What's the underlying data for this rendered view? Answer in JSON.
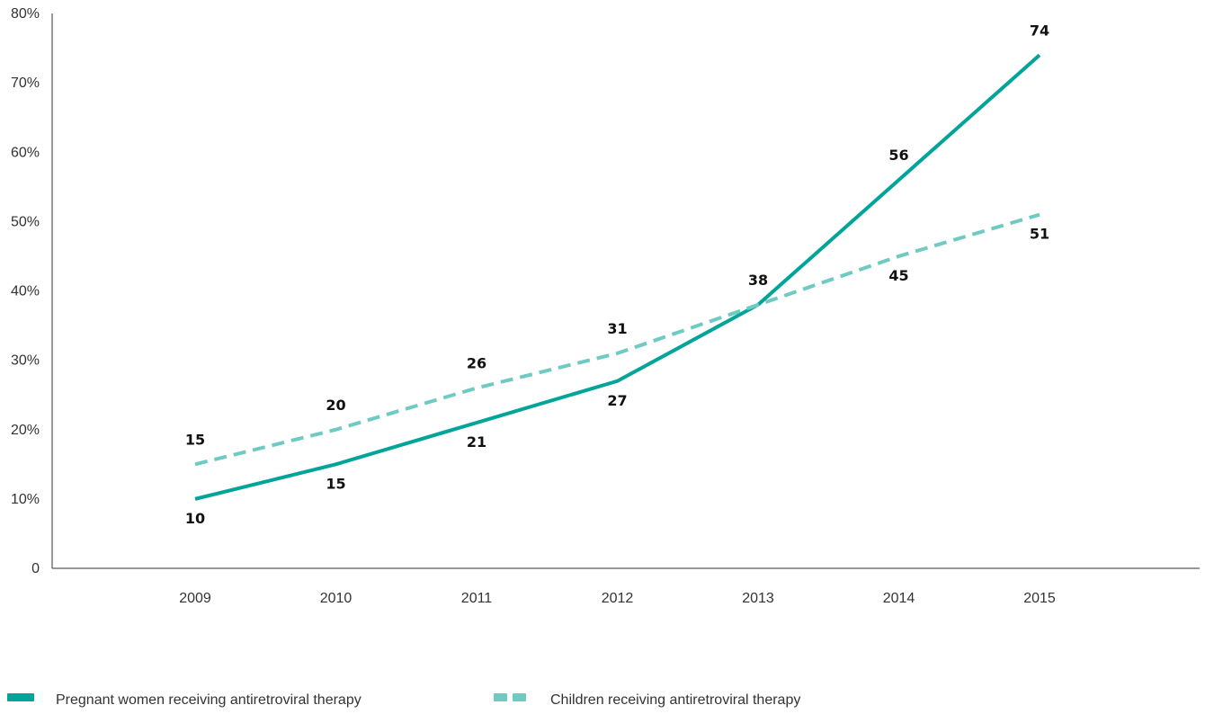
{
  "chart_data": {
    "type": "line",
    "x": [
      "2009",
      "2010",
      "2011",
      "2012",
      "2013",
      "2014",
      "2015"
    ],
    "ylim": [
      0,
      80
    ],
    "yticks": [
      "0",
      "10%",
      "20%",
      "30%",
      "40%",
      "50%",
      "60%",
      "70%",
      "80%"
    ],
    "ytick_values": [
      0,
      10,
      20,
      30,
      40,
      50,
      60,
      70,
      80
    ],
    "grid": false,
    "legend_position": "bottom-left",
    "series": [
      {
        "name": "Pregnant women receiving antiretroviral therapy",
        "values": [
          10,
          15,
          21,
          27,
          38,
          56,
          74
        ],
        "labels": [
          "10",
          "15",
          "21",
          "27",
          "38",
          "56",
          "74"
        ],
        "style": "solid",
        "color": "#00a499"
      },
      {
        "name": "Children receiving antiretroviral therapy",
        "values": [
          15,
          20,
          26,
          31,
          38,
          45,
          51
        ],
        "labels": [
          "15",
          "20",
          "26",
          "31",
          "",
          "45",
          "51"
        ],
        "style": "dashed",
        "color": "#6fcbc2"
      }
    ]
  }
}
